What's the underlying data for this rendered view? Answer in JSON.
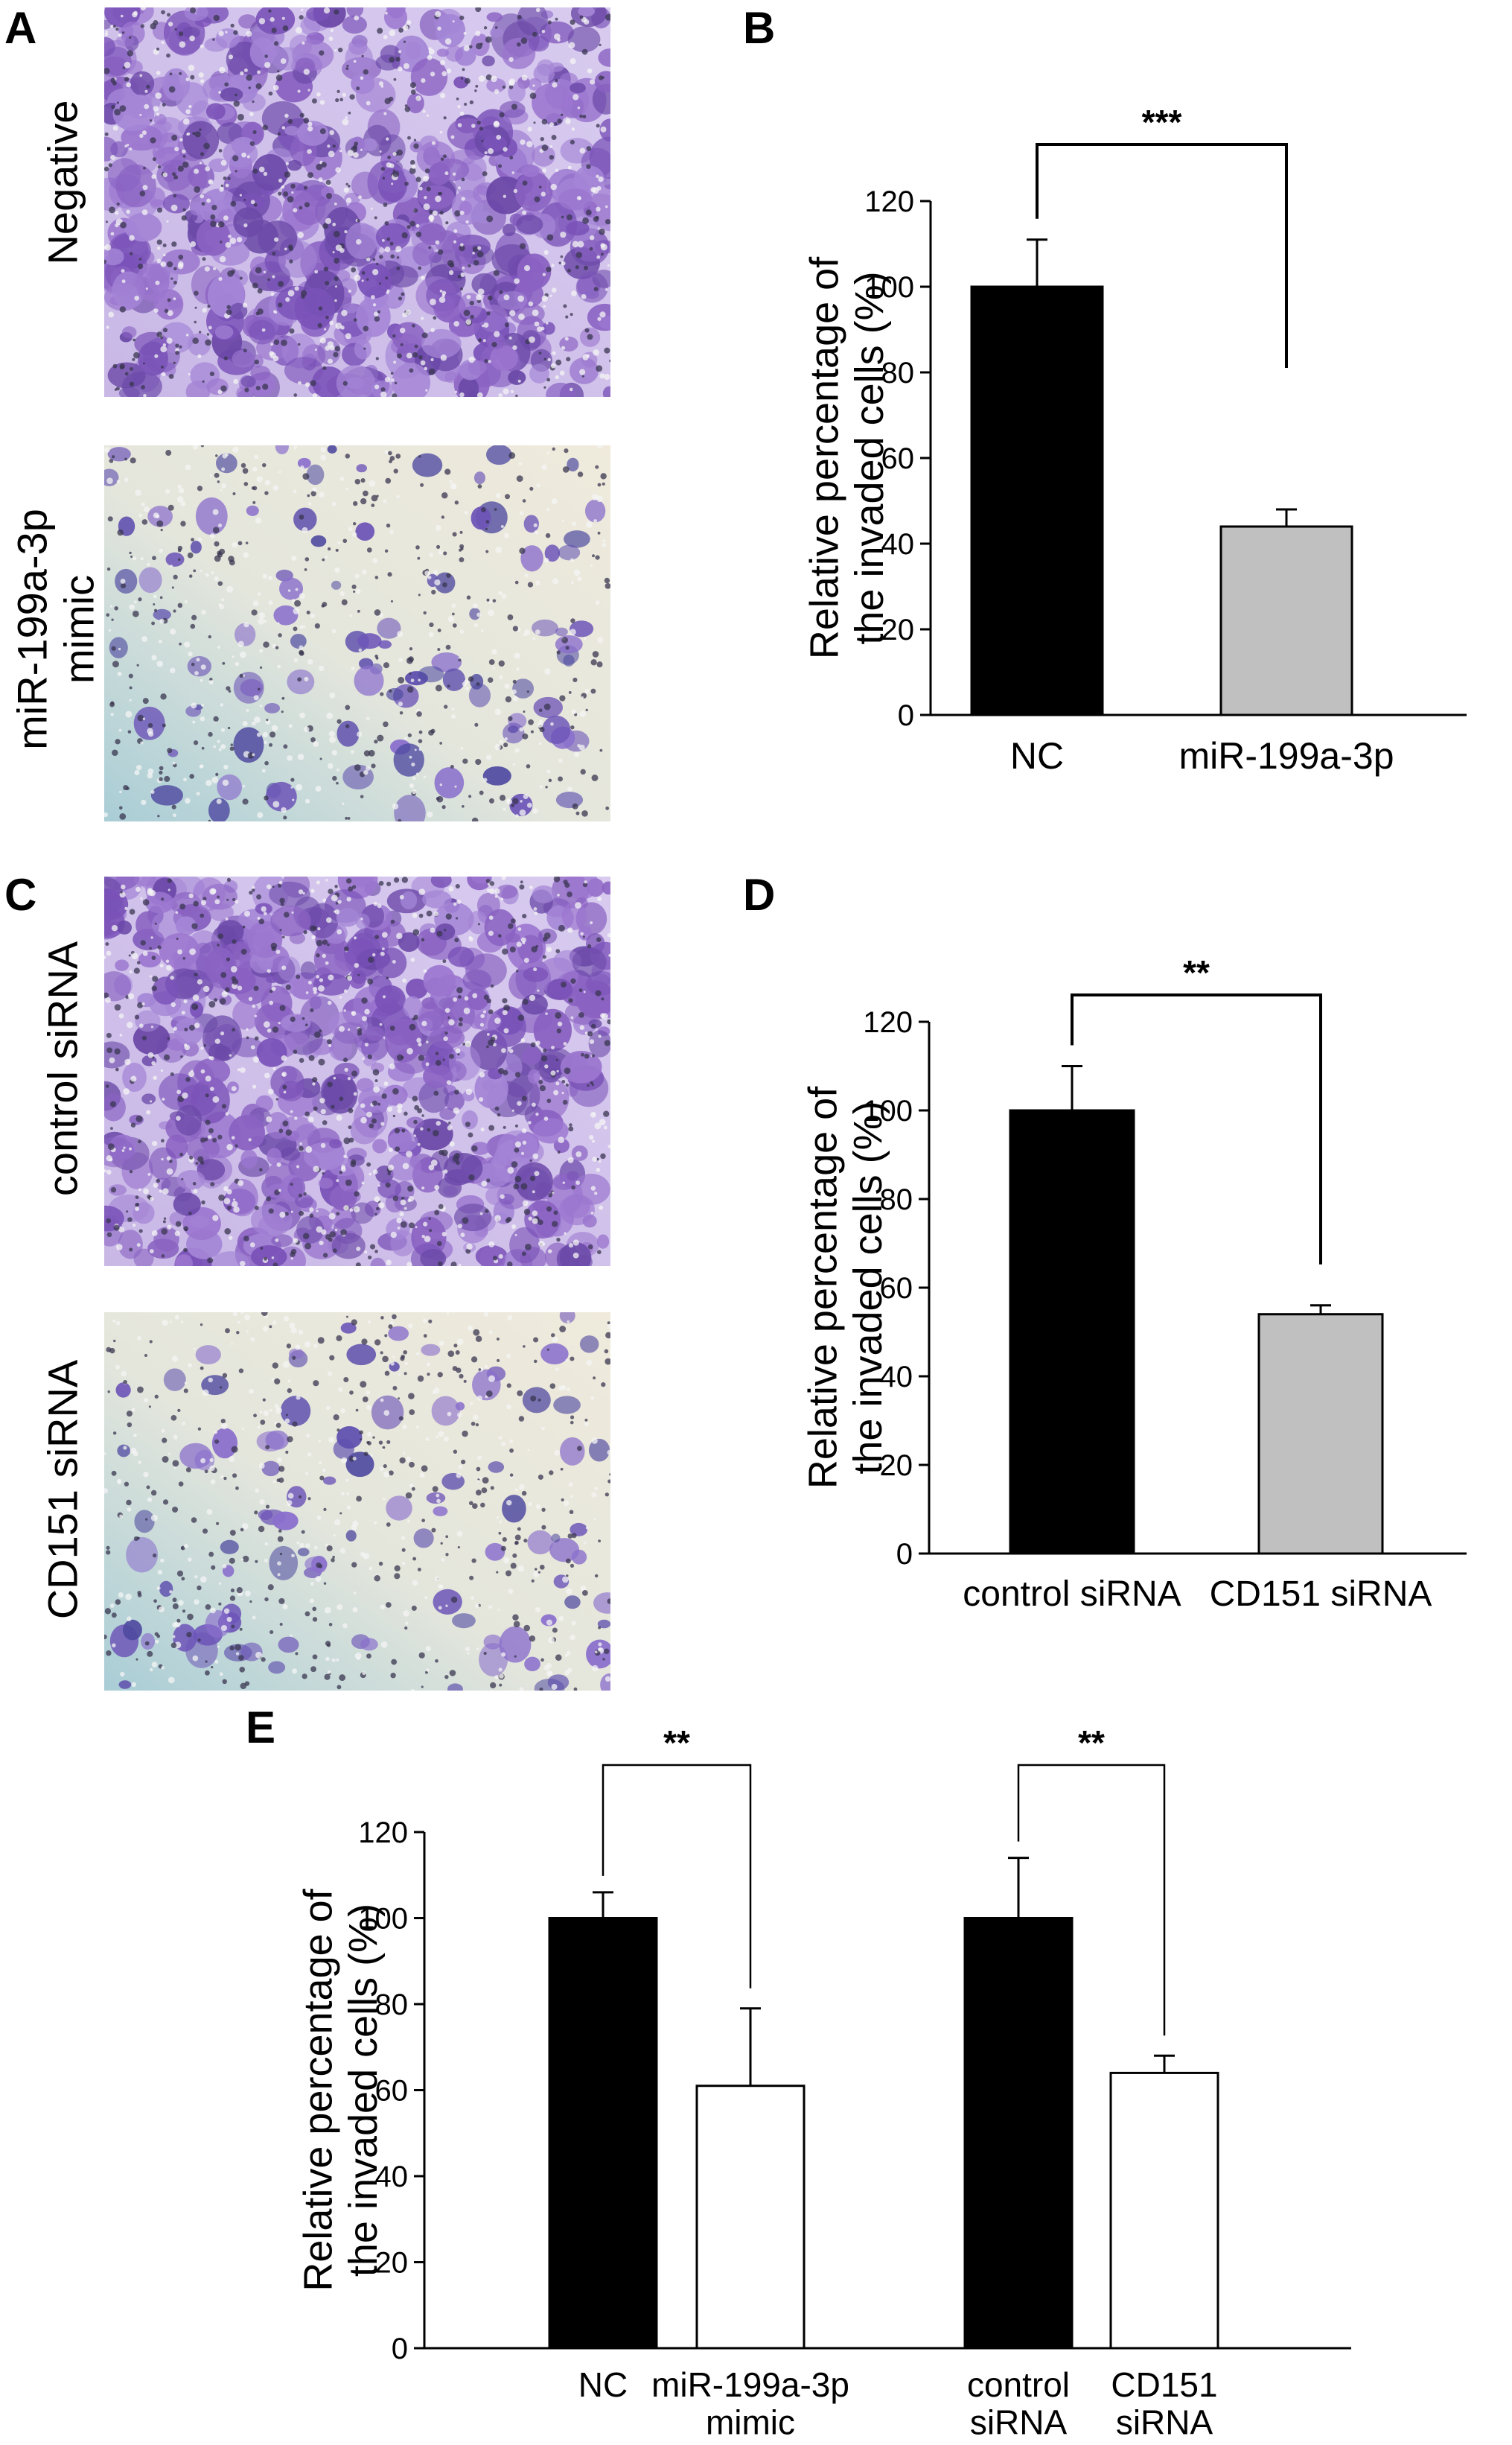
{
  "panels": {
    "A": {
      "letter": "A",
      "images": [
        {
          "label_lines": [
            "Negative"
          ],
          "style": "dense"
        },
        {
          "label_lines": [
            "miR-199a-3p",
            "mimic"
          ],
          "style": "sparse"
        }
      ]
    },
    "B": {
      "letter": "B"
    },
    "C": {
      "letter": "C",
      "images": [
        {
          "label_lines": [
            "control siRNA"
          ],
          "style": "dense"
        },
        {
          "label_lines": [
            "CD151 siRNA"
          ],
          "style": "sparse"
        }
      ]
    },
    "D": {
      "letter": "D"
    },
    "E": {
      "letter": "E"
    }
  },
  "chart_data": [
    {
      "panel": "B",
      "type": "bar",
      "ylabel": [
        "Relative percentage of",
        "the invaded cells (%)"
      ],
      "ylim": [
        0,
        120
      ],
      "yticks": [
        0,
        20,
        40,
        60,
        80,
        100,
        120
      ],
      "categories": [
        {
          "lines": [
            "NC"
          ]
        },
        {
          "lines": [
            "miR-199a-3p"
          ]
        }
      ],
      "values": [
        100,
        44
      ],
      "errors": [
        11,
        4
      ],
      "colors": [
        "#000000",
        "#c0c0c0"
      ],
      "significance": [
        {
          "from": 0,
          "to": 1,
          "label": "***"
        }
      ]
    },
    {
      "panel": "D",
      "type": "bar",
      "ylabel": [
        "Relative percentage of",
        "the invaded cells (%)"
      ],
      "ylim": [
        0,
        120
      ],
      "yticks": [
        0,
        20,
        40,
        60,
        80,
        100,
        120
      ],
      "categories": [
        {
          "lines": [
            "control siRNA"
          ]
        },
        {
          "lines": [
            "CD151 siRNA"
          ]
        }
      ],
      "values": [
        100,
        54
      ],
      "errors": [
        10,
        2
      ],
      "colors": [
        "#000000",
        "#c0c0c0"
      ],
      "significance": [
        {
          "from": 0,
          "to": 1,
          "label": "**"
        }
      ]
    },
    {
      "panel": "E",
      "type": "bar",
      "ylabel": [
        "Relative percentage of",
        "the invaded cells (%)"
      ],
      "ylim": [
        0,
        120
      ],
      "yticks": [
        0,
        20,
        40,
        60,
        80,
        100,
        120
      ],
      "categories": [
        {
          "lines": [
            "NC"
          ]
        },
        {
          "lines": [
            "miR-199a-3p",
            "mimic"
          ]
        },
        {
          "lines": [
            "control",
            "siRNA"
          ]
        },
        {
          "lines": [
            "CD151",
            "siRNA"
          ]
        }
      ],
      "values": [
        100,
        61,
        100,
        64
      ],
      "errors": [
        6,
        18,
        14,
        4
      ],
      "colors": [
        "#000000",
        "#ffffff",
        "#000000",
        "#ffffff"
      ],
      "significance": [
        {
          "from": 0,
          "to": 1,
          "label": "**"
        },
        {
          "from": 2,
          "to": 3,
          "label": "**"
        }
      ]
    }
  ]
}
